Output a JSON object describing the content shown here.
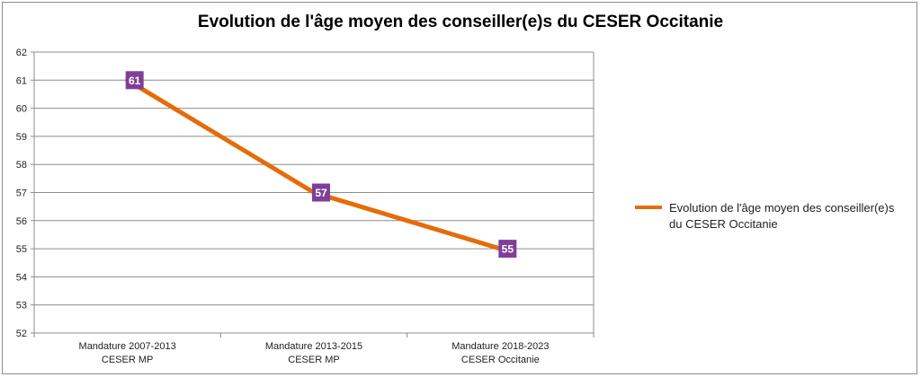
{
  "chart_data": {
    "type": "line",
    "title": "Evolution de l'âge moyen des conseiller(e)s du CESER Occitanie",
    "categories": [
      [
        "Mandature 2007-2013",
        "CESER MP"
      ],
      [
        "Mandature 2013-2015",
        "CESER MP"
      ],
      [
        "Mandature 2018-2023",
        "CESER Occitanie"
      ]
    ],
    "series": [
      {
        "name": "Evolution de l'âge moyen des conseiller(e)s du CESER Occitanie",
        "values": [
          61,
          57,
          55
        ]
      }
    ],
    "ylim": [
      52,
      62
    ],
    "yticks": [
      62,
      61,
      60,
      59,
      58,
      57,
      56,
      55,
      54,
      53,
      52
    ],
    "grid": true,
    "legend_position": "right",
    "colors": {
      "line": "#E46C0A",
      "data_label_bg": "#7F3F98",
      "data_label_text": "#FFFFFF",
      "grid": "#8c8c8c"
    }
  }
}
